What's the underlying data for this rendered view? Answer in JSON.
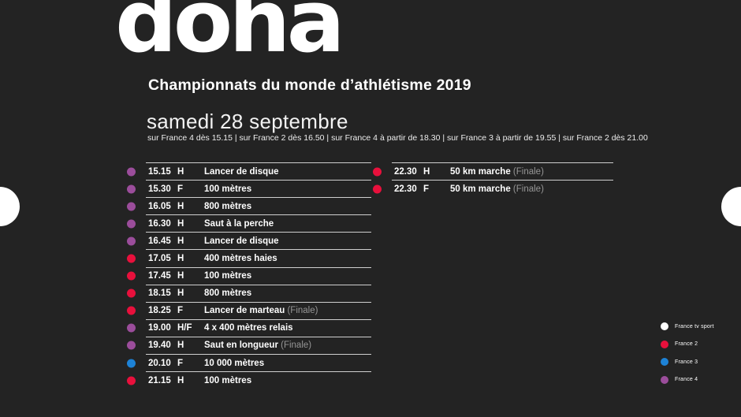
{
  "header": {
    "logo": "doha",
    "title": "Championnats du monde d’athlétisme 2019",
    "date": "samedi 28 septembre",
    "broadcast_info": "sur France 4 dès 15.15 | sur France 2 dès 16.50 | sur France 4 à partir de 18.30 | sur France 3 à partir de 19.55 | sur France 2 dès 21.00"
  },
  "colors": {
    "background": "#232323",
    "france_tv_sport": "#ffffff",
    "france_2": "#e8103c",
    "france_3": "#1d82d6",
    "france_4": "#9b4d9b",
    "separator": "#cfcfcf",
    "finale_text": "#969696"
  },
  "schedule": {
    "finale_label": "(Finale)",
    "left_column": [
      {
        "time": "15.15",
        "gender": "H",
        "event": "Lancer de disque",
        "finale": false,
        "channel": "france_4"
      },
      {
        "time": "15.30",
        "gender": "F",
        "event": "100 mètres",
        "finale": false,
        "channel": "france_4"
      },
      {
        "time": "16.05",
        "gender": "H",
        "event": "800 mètres",
        "finale": false,
        "channel": "france_4"
      },
      {
        "time": "16.30",
        "gender": "H",
        "event": "Saut à la perche",
        "finale": false,
        "channel": "france_4"
      },
      {
        "time": "16.45",
        "gender": "H",
        "event": "Lancer de disque",
        "finale": false,
        "channel": "france_4"
      },
      {
        "time": "17.05",
        "gender": "H",
        "event": "400 mètres haies",
        "finale": false,
        "channel": "france_2"
      },
      {
        "time": "17.45",
        "gender": "H",
        "event": "100 mètres",
        "finale": false,
        "channel": "france_2"
      },
      {
        "time": "18.15",
        "gender": "H",
        "event": "800 mètres",
        "finale": false,
        "channel": "france_2"
      },
      {
        "time": "18.25",
        "gender": "F",
        "event": "Lancer de marteau",
        "finale": true,
        "channel": "france_2"
      },
      {
        "time": "19.00",
        "gender": "H/F",
        "event": "4 x 400 mètres relais",
        "finale": false,
        "channel": "france_4"
      },
      {
        "time": "19.40",
        "gender": "H",
        "event": "Saut en longueur",
        "finale": true,
        "channel": "france_4"
      },
      {
        "time": "20.10",
        "gender": "F",
        "event": "10 000 mètres",
        "finale": false,
        "channel": "france_3"
      },
      {
        "time": "21.15",
        "gender": "H",
        "event": "100 mètres",
        "finale": false,
        "channel": "france_2"
      }
    ],
    "right_column": [
      {
        "time": "22.30",
        "gender": "H",
        "event": "50 km marche",
        "finale": true,
        "channel": "france_2"
      },
      {
        "time": "22.30",
        "gender": "F",
        "event": "50 km marche",
        "finale": true,
        "channel": "france_2"
      }
    ]
  },
  "legend": [
    {
      "label": "France tv sport",
      "channel": "france_tv_sport"
    },
    {
      "label": "France 2",
      "channel": "france_2"
    },
    {
      "label": "France 3",
      "channel": "france_3"
    },
    {
      "label": "France 4",
      "channel": "france_4"
    }
  ]
}
